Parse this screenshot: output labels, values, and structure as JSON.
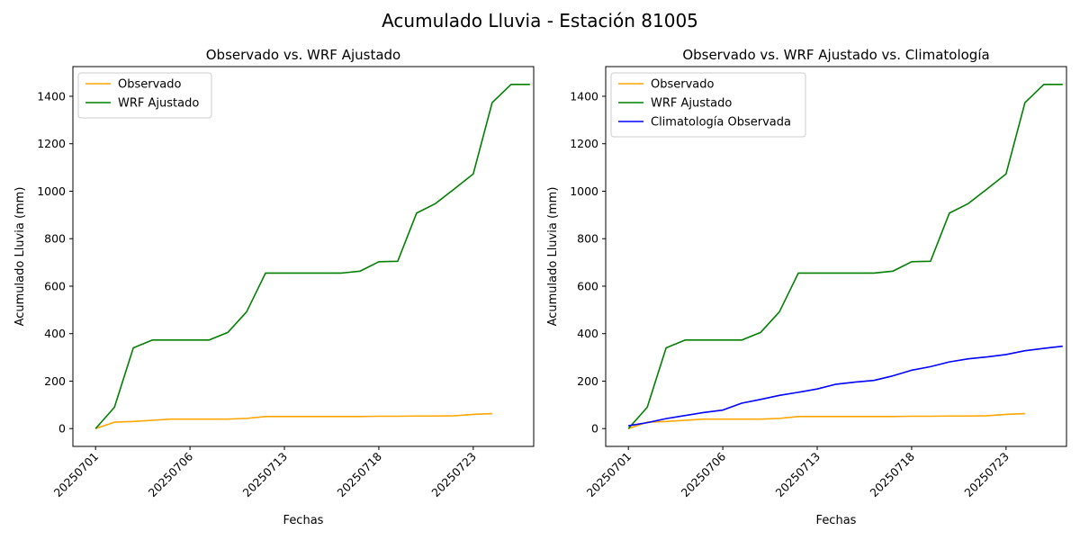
{
  "figure": {
    "title": "Acumulado Lluvia - Estación 81005"
  },
  "chart_data": [
    {
      "type": "line",
      "title": "Observado vs. WRF Ajustado",
      "xlabel": "Fechas",
      "ylabel": "Acumulado Lluvia (mm)",
      "x_tick_labels": [
        "20250701",
        "20250706",
        "20250713",
        "20250718",
        "20250723"
      ],
      "x_tick_index": [
        0,
        5,
        10,
        15,
        20
      ],
      "xlim": [
        -1.2,
        23.2
      ],
      "ylim": [
        -75,
        1525
      ],
      "y_ticks": [
        0,
        200,
        400,
        600,
        800,
        1000,
        1200,
        1400
      ],
      "grid": false,
      "legend_position": "top-left",
      "series": [
        {
          "name": "Observado",
          "color": "#ffa500",
          "values": [
            0,
            27,
            30,
            35,
            40,
            40,
            40,
            40,
            43,
            51,
            51,
            51,
            51,
            51,
            51,
            52,
            52,
            53,
            53,
            54,
            60,
            63
          ]
        },
        {
          "name": "WRF Ajustado",
          "color": "#008000",
          "values": [
            0,
            90,
            340,
            373,
            373,
            373,
            373,
            405,
            492,
            655,
            655,
            655,
            655,
            655,
            663,
            703,
            705,
            908,
            948,
            1010,
            1073,
            1373,
            1450,
            1450
          ]
        }
      ]
    },
    {
      "type": "line",
      "title": "Observado vs. WRF Ajustado vs. Climatología",
      "xlabel": "Fechas",
      "ylabel": "Acumulado Lluvia (mm)",
      "x_tick_labels": [
        "20250701",
        "20250706",
        "20250713",
        "20250718",
        "20250723"
      ],
      "x_tick_index": [
        0,
        5,
        10,
        15,
        20
      ],
      "xlim": [
        -1.2,
        23.2
      ],
      "ylim": [
        -75,
        1525
      ],
      "y_ticks": [
        0,
        200,
        400,
        600,
        800,
        1000,
        1200,
        1400
      ],
      "grid": false,
      "legend_position": "top-left",
      "series": [
        {
          "name": "Observado",
          "color": "#ffa500",
          "values": [
            0,
            27,
            30,
            35,
            40,
            40,
            40,
            40,
            43,
            51,
            51,
            51,
            51,
            51,
            51,
            52,
            52,
            53,
            53,
            54,
            60,
            63
          ]
        },
        {
          "name": "WRF Ajustado",
          "color": "#008000",
          "values": [
            0,
            90,
            340,
            373,
            373,
            373,
            373,
            405,
            492,
            655,
            655,
            655,
            655,
            655,
            663,
            703,
            705,
            908,
            948,
            1010,
            1073,
            1373,
            1450,
            1450
          ]
        },
        {
          "name": "Climatología Observada",
          "color": "#0000ff",
          "values": [
            12,
            25,
            42,
            55,
            68,
            78,
            107,
            123,
            140,
            153,
            167,
            187,
            196,
            203,
            222,
            246,
            261,
            281,
            294,
            302,
            312,
            328,
            338,
            347
          ]
        }
      ]
    }
  ]
}
